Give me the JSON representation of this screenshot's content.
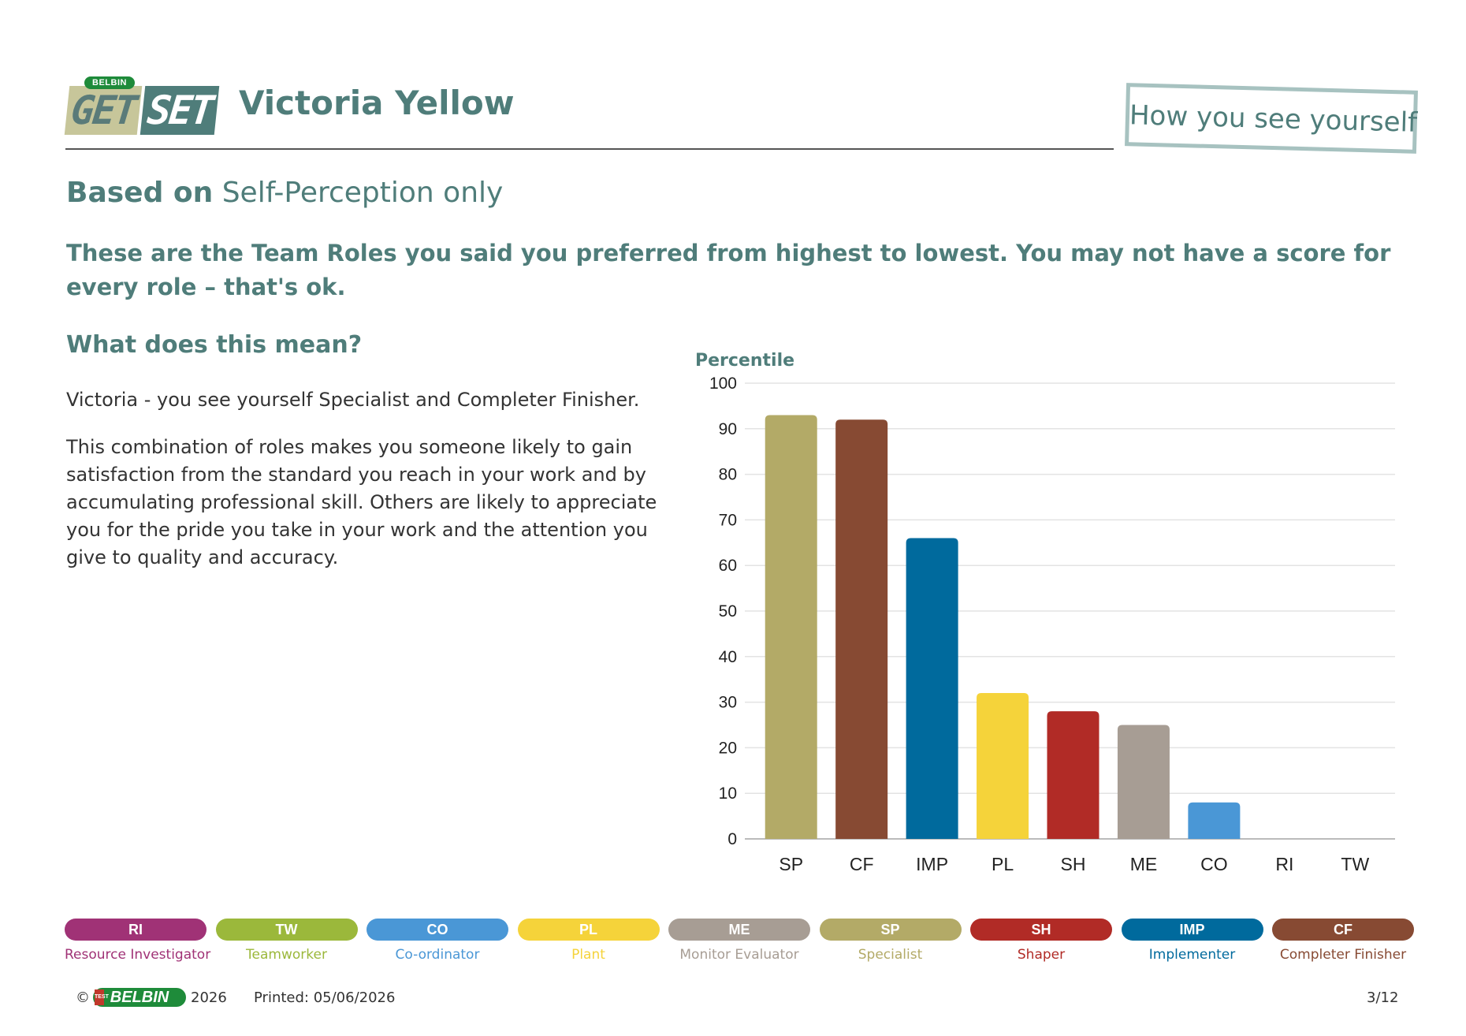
{
  "header": {
    "logo": {
      "small_text": "BELBIN",
      "get": "GET",
      "set": "SET"
    },
    "person_name": "Victoria Yellow",
    "stamp_text": "How you see yourself"
  },
  "basis": {
    "bold": "Based on",
    "rest": "Self-Perception only"
  },
  "intro": "These are the Team Roles you said you preferred from highest to lowest. You may not have a score for every role – that's ok.",
  "meaning": {
    "heading": "What does this mean?",
    "paragraph1": "Victoria - you see yourself Specialist and Completer Finisher.",
    "paragraph2": "This combination of roles makes you someone likely to gain satisfaction from the standard you reach in your work and by accumulating professional skill. Others are likely to appreciate you for the pride you take in your work and the attention you give to quality and accuracy."
  },
  "chart_data": {
    "type": "bar",
    "ylabel": "Percentile",
    "ylim": [
      0,
      100
    ],
    "yticks": [
      0,
      10,
      20,
      30,
      40,
      50,
      60,
      70,
      80,
      90,
      100
    ],
    "categories": [
      "SP",
      "CF",
      "IMP",
      "PL",
      "SH",
      "ME",
      "CO",
      "RI",
      "TW"
    ],
    "values": [
      93,
      92,
      66,
      32,
      28,
      25,
      8,
      0,
      0
    ],
    "colors": [
      "#b3aa67",
      "#874a33",
      "#006a9d",
      "#f5d33a",
      "#b12b26",
      "#a79d94",
      "#4a97d6",
      "#a03276",
      "#9bb83b"
    ],
    "grid": true
  },
  "legend": [
    {
      "code": "RI",
      "name": "Resource Investigator",
      "color": "#a03276"
    },
    {
      "code": "TW",
      "name": "Teamworker",
      "color": "#9bb83b"
    },
    {
      "code": "CO",
      "name": "Co-ordinator",
      "color": "#4a97d6"
    },
    {
      "code": "PL",
      "name": "Plant",
      "color": "#f5d33a"
    },
    {
      "code": "ME",
      "name": "Monitor Evaluator",
      "color": "#a79d94"
    },
    {
      "code": "SP",
      "name": "Specialist",
      "color": "#b3aa67"
    },
    {
      "code": "SH",
      "name": "Shaper",
      "color": "#b12b26"
    },
    {
      "code": "IMP",
      "name": "Implementer",
      "color": "#006a9d"
    },
    {
      "code": "CF",
      "name": "Completer Finisher",
      "color": "#874a33"
    }
  ],
  "footer": {
    "copyright": "©",
    "logo_text": "BELBIN",
    "logo_badge": "TEST",
    "year": "2026",
    "printed": "Printed: 05/06/2026",
    "page": "3/12"
  }
}
